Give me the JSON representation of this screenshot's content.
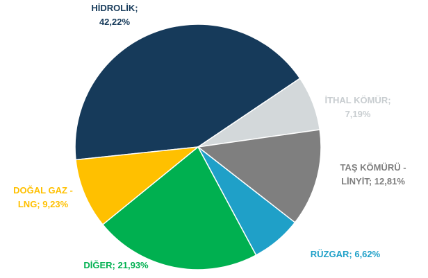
{
  "chart_data": {
    "type": "pie",
    "categories": [
      "HİDROLİK;",
      "İTHAL KÖMÜR;",
      "TAŞ KÖMÜRÜ - LİNYİT;",
      "RÜZGAR;",
      "DİĞER;",
      "DOĞAL GAZ - LNG;"
    ],
    "values": [
      42.22,
      7.19,
      12.81,
      6.62,
      21.93,
      9.23
    ],
    "value_labels": [
      "42,22%",
      "7,19%",
      "12,81%",
      "6,62%",
      "21,93%",
      "9,23%"
    ],
    "colors": [
      "#163a5a",
      "#d3d8da",
      "#7f7f7f",
      "#1fa0c8",
      "#00b050",
      "#ffc000"
    ]
  }
}
